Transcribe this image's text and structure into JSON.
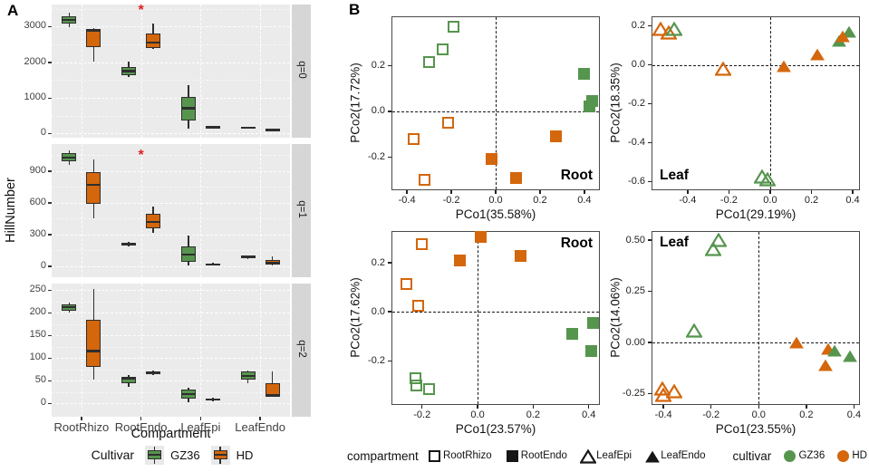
{
  "figure": {
    "panel_a_label": "A",
    "panel_b_label": "B"
  },
  "colors": {
    "green": "#56954e",
    "orange": "#d4660b",
    "sig": "#dd2222",
    "panel_bg": "#ebebeb",
    "strip_bg": "#d6d6d6",
    "grid": "#ffffff",
    "box_border": "#2e2e2e",
    "axis_text": "#404040",
    "black": "#161616"
  },
  "cultivar_colors": {
    "GZ36": "green",
    "HD": "orange"
  },
  "shape_map": {
    "RootRhizo": "square-open",
    "RootEndo": "square-filled",
    "LeafEpi": "triangle-open",
    "LeafEndo": "triangle-filled"
  },
  "chart_data": [
    {
      "type": "box",
      "panel": "A",
      "y_axis_title": "HillNumber",
      "x_axis_title": "Compartment",
      "categories": [
        "RootRhizo",
        "RootEndo",
        "LeafEpi",
        "LeafEndo"
      ],
      "legend": {
        "title": "Cultivar",
        "items": [
          {
            "label": "GZ36",
            "cultivar": "GZ36"
          },
          {
            "label": "HD",
            "cultivar": "HD"
          }
        ]
      },
      "facets": [
        {
          "strip": "q=0",
          "ytick_values": [
            0,
            1000,
            2000,
            3000
          ],
          "ytick_labels": [
            "0",
            "1000",
            "2000",
            "3000"
          ],
          "ylim": [
            -115,
            3622
          ],
          "sig": {
            "category": "RootEndo",
            "value": 3470,
            "symbol": "*"
          },
          "boxes": [
            {
              "category": "RootRhizo",
              "cultivar": "GZ36",
              "values": [
                2980,
                3080,
                3190,
                3300,
                3400
              ]
            },
            {
              "category": "RootRhizo",
              "cultivar": "HD",
              "values": [
                2030,
                2420,
                2890,
                2935,
                2950
              ]
            },
            {
              "category": "RootEndo",
              "cultivar": "GZ36",
              "values": [
                1600,
                1645,
                1755,
                1880,
                2025
              ]
            },
            {
              "category": "RootEndo",
              "cultivar": "HD",
              "values": [
                2365,
                2410,
                2550,
                2815,
                3085
              ]
            },
            {
              "category": "LeafEpi",
              "cultivar": "GZ36",
              "values": [
                130,
                380,
                710,
                1020,
                1350
              ]
            },
            {
              "category": "LeafEpi",
              "cultivar": "HD",
              "values": [
                130,
                150,
                175,
                200,
                220
              ]
            },
            {
              "category": "LeafEndo",
              "cultivar": "GZ36",
              "values": [
                135,
                150,
                165,
                185,
                195
              ]
            },
            {
              "category": "LeafEndo",
              "cultivar": "HD",
              "values": [
                80,
                95,
                110,
                125,
                140
              ]
            }
          ]
        },
        {
          "strip": "q=1",
          "ytick_values": [
            0,
            300,
            600,
            900
          ],
          "ytick_labels": [
            "0",
            "300",
            "600",
            "900"
          ],
          "ylim": [
            -103,
            1157
          ],
          "sig": {
            "category": "RootEndo",
            "value": 1055,
            "symbol": "*"
          },
          "boxes": [
            {
              "category": "RootRhizo",
              "cultivar": "GZ36",
              "values": [
                960,
                990,
                1030,
                1070,
                1100
              ]
            },
            {
              "category": "RootRhizo",
              "cultivar": "HD",
              "values": [
                450,
                590,
                770,
                890,
                1010
              ]
            },
            {
              "category": "RootEndo",
              "cultivar": "GZ36",
              "values": [
                185,
                196,
                210,
                222,
                232
              ]
            },
            {
              "category": "RootEndo",
              "cultivar": "HD",
              "values": [
                320,
                360,
                420,
                500,
                565
              ]
            },
            {
              "category": "LeafEpi",
              "cultivar": "GZ36",
              "values": [
                5,
                40,
                110,
                190,
                290
              ]
            },
            {
              "category": "LeafEpi",
              "cultivar": "HD",
              "values": [
                5,
                10,
                18,
                28,
                35
              ]
            },
            {
              "category": "LeafEndo",
              "cultivar": "GZ36",
              "values": [
                70,
                78,
                88,
                98,
                105
              ]
            },
            {
              "category": "LeafEndo",
              "cultivar": "HD",
              "values": [
                10,
                18,
                32,
                62,
                95
              ]
            }
          ]
        },
        {
          "strip": "q=2",
          "ytick_values": [
            0,
            50,
            100,
            150,
            200,
            250
          ],
          "ytick_labels": [
            "0",
            "50",
            "100",
            "150",
            "200",
            "250"
          ],
          "ylim": [
            -30,
            264
          ],
          "sig": null,
          "boxes": [
            {
              "category": "RootRhizo",
              "cultivar": "GZ36",
              "values": [
                200,
                205,
                212,
                218,
                223
              ]
            },
            {
              "category": "RootRhizo",
              "cultivar": "HD",
              "values": [
                53,
                80,
                115,
                185,
                253
              ]
            },
            {
              "category": "RootEndo",
              "cultivar": "GZ36",
              "values": [
                37,
                45,
                55,
                58,
                63
              ]
            },
            {
              "category": "RootEndo",
              "cultivar": "HD",
              "values": [
                62,
                64,
                67,
                70,
                72
              ]
            },
            {
              "category": "LeafEpi",
              "cultivar": "GZ36",
              "values": [
                2,
                10,
                20,
                30,
                34
              ]
            },
            {
              "category": "LeafEpi",
              "cultivar": "HD",
              "values": [
                4,
                6,
                8,
                10,
                12
              ]
            },
            {
              "category": "LeafEndo",
              "cultivar": "GZ36",
              "values": [
                44,
                52,
                60,
                70,
                72
              ]
            },
            {
              "category": "LeafEndo",
              "cultivar": "HD",
              "values": [
                14,
                15,
                18,
                44,
                71
              ]
            }
          ]
        }
      ]
    },
    {
      "type": "scatter",
      "panel": "B",
      "plots": [
        {
          "name": "root-pcoa-1",
          "corner_label": "Root",
          "corner": "br",
          "x_title": "PCo1(35.58%)",
          "y_title": "PCo2(17.72%)",
          "xlim": [
            -0.47,
            0.47
          ],
          "ylim": [
            -0.345,
            0.415
          ],
          "xtick_values": [
            -0.4,
            -0.2,
            0.0,
            0.2,
            0.4
          ],
          "xtick_labels": [
            "-0.4",
            "-0.2",
            "0.0",
            "0.2",
            "0.4"
          ],
          "ytick_values": [
            -0.2,
            0.0,
            0.2
          ],
          "ytick_labels": [
            "-0.2",
            "0.0",
            "0.2"
          ],
          "points": [
            {
              "x": -0.19,
              "y": 0.37,
              "compartment": "RootRhizo",
              "cultivar": "GZ36"
            },
            {
              "x": -0.24,
              "y": 0.27,
              "compartment": "RootRhizo",
              "cultivar": "GZ36"
            },
            {
              "x": -0.3,
              "y": 0.215,
              "compartment": "RootRhizo",
              "cultivar": "GZ36"
            },
            {
              "x": -0.215,
              "y": -0.05,
              "compartment": "RootRhizo",
              "cultivar": "HD"
            },
            {
              "x": -0.37,
              "y": -0.12,
              "compartment": "RootRhizo",
              "cultivar": "HD"
            },
            {
              "x": -0.32,
              "y": -0.3,
              "compartment": "RootRhizo",
              "cultivar": "HD"
            },
            {
              "x": 0.4,
              "y": 0.165,
              "compartment": "RootEndo",
              "cultivar": "GZ36"
            },
            {
              "x": 0.435,
              "y": 0.045,
              "compartment": "RootEndo",
              "cultivar": "GZ36"
            },
            {
              "x": 0.425,
              "y": 0.02,
              "compartment": "RootEndo",
              "cultivar": "GZ36"
            },
            {
              "x": -0.02,
              "y": -0.21,
              "compartment": "RootEndo",
              "cultivar": "HD"
            },
            {
              "x": 0.09,
              "y": -0.29,
              "compartment": "RootEndo",
              "cultivar": "HD"
            },
            {
              "x": 0.27,
              "y": -0.11,
              "compartment": "RootEndo",
              "cultivar": "HD"
            }
          ]
        },
        {
          "name": "leaf-pcoa-1",
          "corner_label": "Leaf",
          "corner": "bl",
          "x_title": "PCo1(29.19%)",
          "y_title": "PCo2(18.35%)",
          "xlim": [
            -0.575,
            0.435
          ],
          "ylim": [
            -0.645,
            0.25
          ],
          "xtick_values": [
            -0.4,
            -0.2,
            0.0,
            0.2,
            0.4
          ],
          "xtick_labels": [
            "-0.4",
            "-0.2",
            "0.0",
            "0.2",
            "0.4"
          ],
          "ytick_values": [
            -0.6,
            -0.4,
            -0.2,
            0.0,
            0.2
          ],
          "ytick_labels": [
            "-0.6",
            "-0.4",
            "-0.2",
            "0.0",
            "0.2"
          ],
          "points": [
            {
              "x": -0.53,
              "y": 0.185,
              "compartment": "LeafEpi",
              "cultivar": "HD"
            },
            {
              "x": -0.49,
              "y": 0.165,
              "compartment": "LeafEpi",
              "cultivar": "HD"
            },
            {
              "x": -0.23,
              "y": -0.02,
              "compartment": "LeafEpi",
              "cultivar": "HD"
            },
            {
              "x": -0.465,
              "y": 0.185,
              "compartment": "LeafEpi",
              "cultivar": "GZ36"
            },
            {
              "x": -0.04,
              "y": -0.575,
              "compartment": "LeafEpi",
              "cultivar": "GZ36"
            },
            {
              "x": -0.015,
              "y": -0.59,
              "compartment": "LeafEpi",
              "cultivar": "GZ36"
            },
            {
              "x": 0.335,
              "y": 0.122,
              "compartment": "LeafEndo",
              "cultivar": "GZ36"
            },
            {
              "x": 0.382,
              "y": 0.172,
              "compartment": "LeafEndo",
              "cultivar": "GZ36"
            },
            {
              "x": 0.065,
              "y": -0.005,
              "compartment": "LeafEndo",
              "cultivar": "HD"
            },
            {
              "x": 0.23,
              "y": 0.055,
              "compartment": "LeafEndo",
              "cultivar": "HD"
            },
            {
              "x": 0.352,
              "y": 0.148,
              "compartment": "LeafEndo",
              "cultivar": "HD"
            }
          ]
        },
        {
          "name": "root-pcoa-2",
          "corner_label": "Root",
          "corner": "tr",
          "x_title": "PCo1(23.57%)",
          "y_title": "PCo2(17.62%)",
          "xlim": [
            -0.31,
            0.44
          ],
          "ylim": [
            -0.38,
            0.33
          ],
          "xtick_values": [
            -0.2,
            0.0,
            0.2,
            0.4
          ],
          "xtick_labels": [
            "-0.2",
            "0.0",
            "0.2",
            "0.4"
          ],
          "ytick_values": [
            -0.2,
            0.0,
            0.2
          ],
          "ytick_labels": [
            "-0.2",
            "0.0",
            "0.2"
          ],
          "points": [
            {
              "x": -0.2,
              "y": 0.275,
              "compartment": "RootRhizo",
              "cultivar": "HD"
            },
            {
              "x": -0.255,
              "y": 0.115,
              "compartment": "RootRhizo",
              "cultivar": "HD"
            },
            {
              "x": -0.215,
              "y": 0.025,
              "compartment": "RootRhizo",
              "cultivar": "HD"
            },
            {
              "x": 0.01,
              "y": 0.305,
              "compartment": "RootEndo",
              "cultivar": "HD"
            },
            {
              "x": -0.065,
              "y": 0.21,
              "compartment": "RootEndo",
              "cultivar": "HD"
            },
            {
              "x": 0.155,
              "y": 0.23,
              "compartment": "RootEndo",
              "cultivar": "HD"
            },
            {
              "x": 0.34,
              "y": -0.09,
              "compartment": "RootEndo",
              "cultivar": "GZ36"
            },
            {
              "x": 0.415,
              "y": -0.045,
              "compartment": "RootEndo",
              "cultivar": "GZ36"
            },
            {
              "x": 0.41,
              "y": -0.16,
              "compartment": "RootEndo",
              "cultivar": "GZ36"
            },
            {
              "x": -0.225,
              "y": -0.27,
              "compartment": "RootRhizo",
              "cultivar": "GZ36"
            },
            {
              "x": -0.22,
              "y": -0.3,
              "compartment": "RootRhizo",
              "cultivar": "GZ36"
            },
            {
              "x": -0.175,
              "y": -0.315,
              "compartment": "RootRhizo",
              "cultivar": "GZ36"
            }
          ]
        },
        {
          "name": "leaf-pcoa-2",
          "corner_label": "Leaf",
          "corner": "tl",
          "x_title": "PCo1(23.55%)",
          "y_title": "PCo2(14.06%)",
          "xlim": [
            -0.45,
            0.425
          ],
          "ylim": [
            -0.305,
            0.545
          ],
          "xtick_values": [
            -0.4,
            -0.2,
            0.0,
            0.2,
            0.4
          ],
          "xtick_labels": [
            "-0.4",
            "-0.2",
            "0.0",
            "0.2",
            "0.4"
          ],
          "ytick_values": [
            -0.25,
            0.0,
            0.25,
            0.5
          ],
          "ytick_labels": [
            "-0.25",
            "0.00",
            "0.25",
            "0.50"
          ],
          "points": [
            {
              "x": -0.17,
              "y": 0.5,
              "compartment": "LeafEpi",
              "cultivar": "GZ36"
            },
            {
              "x": -0.19,
              "y": 0.455,
              "compartment": "LeafEpi",
              "cultivar": "GZ36"
            },
            {
              "x": -0.27,
              "y": 0.06,
              "compartment": "LeafEpi",
              "cultivar": "GZ36"
            },
            {
              "x": -0.405,
              "y": -0.225,
              "compartment": "LeafEpi",
              "cultivar": "HD"
            },
            {
              "x": -0.4,
              "y": -0.255,
              "compartment": "LeafEpi",
              "cultivar": "HD"
            },
            {
              "x": -0.355,
              "y": -0.24,
              "compartment": "LeafEpi",
              "cultivar": "HD"
            },
            {
              "x": 0.16,
              "y": 0.0,
              "compartment": "LeafEndo",
              "cultivar": "HD"
            },
            {
              "x": 0.29,
              "y": -0.03,
              "compartment": "LeafEndo",
              "cultivar": "HD"
            },
            {
              "x": 0.28,
              "y": -0.11,
              "compartment": "LeafEndo",
              "cultivar": "HD"
            },
            {
              "x": 0.32,
              "y": -0.04,
              "compartment": "LeafEndo",
              "cultivar": "GZ36"
            },
            {
              "x": 0.385,
              "y": -0.065,
              "compartment": "LeafEndo",
              "cultivar": "GZ36"
            }
          ]
        }
      ],
      "legend": {
        "compartment_title": "compartment",
        "compartment_items": [
          {
            "label": "RootRhizo",
            "shape": "square-open"
          },
          {
            "label": "RootEndo",
            "shape": "square-filled"
          },
          {
            "label": "LeafEpi",
            "shape": "triangle-open"
          },
          {
            "label": "LeafEndo",
            "shape": "triangle-filled"
          }
        ],
        "cultivar_title": "cultivar",
        "cultivar_items": [
          {
            "label": "GZ36",
            "cultivar": "GZ36"
          },
          {
            "label": "HD",
            "cultivar": "HD"
          }
        ]
      }
    }
  ]
}
